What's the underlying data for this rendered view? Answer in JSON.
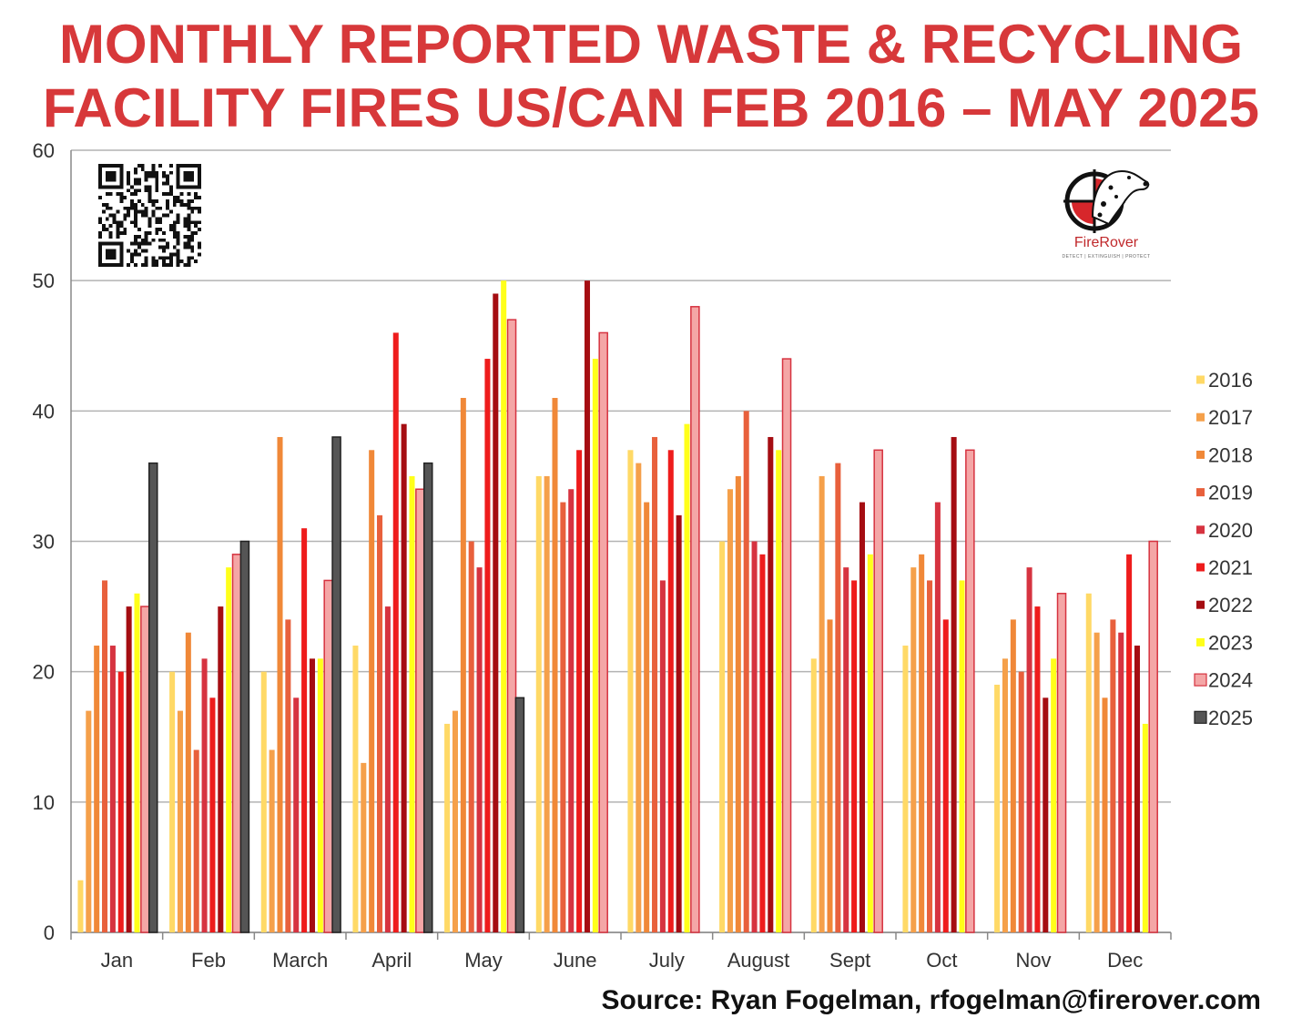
{
  "title_line1": "MONTHLY REPORTED WASTE & RECYCLING",
  "title_line2": "FACILITY FIRES US/CAN FEB 2016 – MAY 2025",
  "source": "Source: Ryan Fogelman, rfogelman@firerover.com",
  "logo": {
    "name": "FireRover",
    "tagline": "DETECT | EXTINGUISH | PROTECT"
  },
  "chart_data": {
    "type": "bar",
    "categories": [
      "Jan",
      "Feb",
      "March",
      "April",
      "May",
      "June",
      "July",
      "August",
      "Sept",
      "Oct",
      "Nov",
      "Dec"
    ],
    "ylim": [
      0,
      60
    ],
    "yticks": [
      0,
      10,
      20,
      30,
      40,
      50,
      60
    ],
    "grid": true,
    "legend_position": "right",
    "series": [
      {
        "name": "2016",
        "color": "#ffd966",
        "values": [
          4,
          20,
          20,
          22,
          16,
          35,
          37,
          30,
          21,
          22,
          19,
          26
        ]
      },
      {
        "name": "2017",
        "color": "#f5a04a",
        "values": [
          17,
          17,
          14,
          13,
          17,
          35,
          36,
          34,
          35,
          28,
          21,
          23
        ]
      },
      {
        "name": "2018",
        "color": "#f08838",
        "values": [
          22,
          23,
          38,
          37,
          41,
          41,
          33,
          35,
          24,
          29,
          24,
          18
        ]
      },
      {
        "name": "2019",
        "color": "#e8603c",
        "values": [
          27,
          14,
          24,
          32,
          30,
          33,
          38,
          40,
          36,
          27,
          20,
          24
        ]
      },
      {
        "name": "2020",
        "color": "#d63340",
        "values": [
          22,
          21,
          18,
          25,
          28,
          34,
          27,
          30,
          28,
          33,
          28,
          23
        ]
      },
      {
        "name": "2021",
        "color": "#ee1c1c",
        "values": [
          20,
          18,
          31,
          46,
          44,
          37,
          37,
          29,
          27,
          24,
          25,
          29
        ]
      },
      {
        "name": "2022",
        "color": "#a50d12",
        "values": [
          25,
          25,
          21,
          39,
          49,
          50,
          32,
          38,
          33,
          38,
          18,
          22
        ]
      },
      {
        "name": "2023",
        "color": "#ffff1a",
        "values": [
          26,
          28,
          21,
          35,
          50,
          44,
          39,
          37,
          29,
          27,
          21,
          16
        ]
      },
      {
        "name": "2024",
        "color": "#f4a6a6",
        "values": [
          25,
          29,
          27,
          34,
          47,
          46,
          48,
          44,
          37,
          37,
          26,
          30
        ]
      },
      {
        "name": "2025",
        "color": "#555555",
        "values": [
          36,
          30,
          38,
          36,
          18,
          null,
          null,
          null,
          null,
          null,
          null,
          null
        ]
      }
    ]
  }
}
